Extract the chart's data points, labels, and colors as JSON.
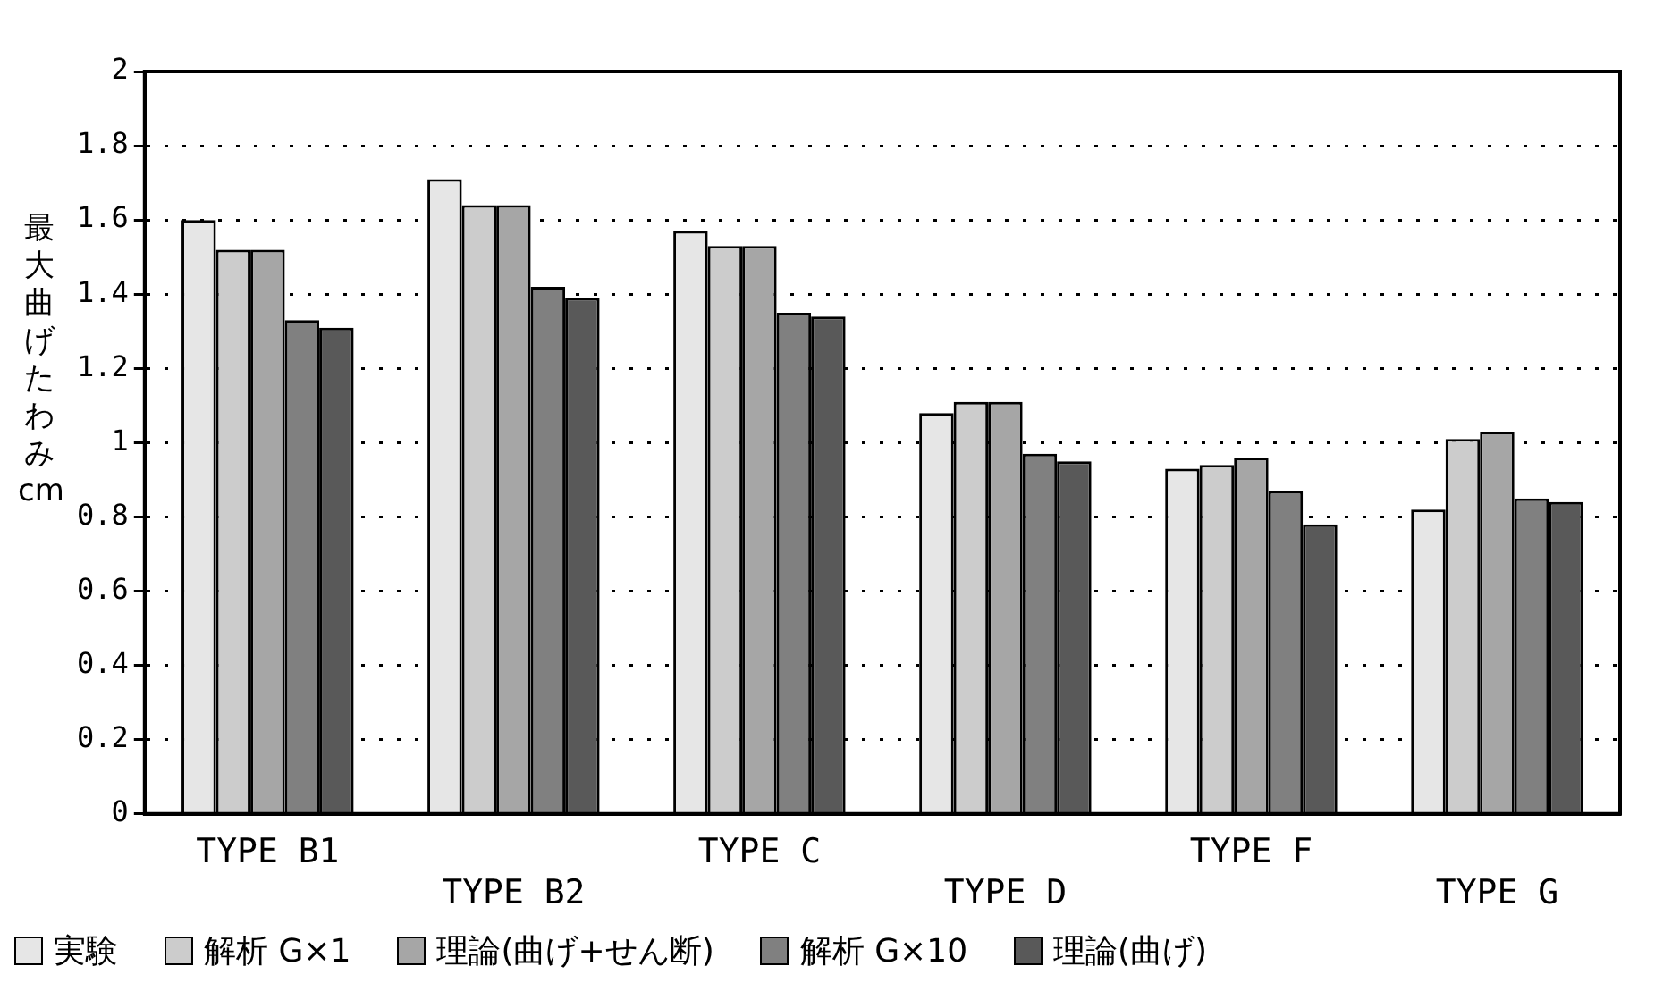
{
  "chart_data": {
    "type": "bar",
    "ylabel": "最大曲げたわみ cm",
    "categories": [
      "TYPE B1",
      "TYPE B2",
      "TYPE C",
      "TYPE D",
      "TYPE F",
      "TYPE G"
    ],
    "series": [
      {
        "name": "実験",
        "color": "#e6e6e6",
        "values": [
          1.6,
          1.71,
          1.57,
          1.08,
          0.93,
          0.82
        ]
      },
      {
        "name": "解析 G×1",
        "color": "#cccccc",
        "values": [
          1.52,
          1.64,
          1.53,
          1.11,
          0.94,
          1.01
        ]
      },
      {
        "name": "理論(曲げ+せん断)",
        "color": "#a6a6a6",
        "values": [
          1.52,
          1.64,
          1.53,
          1.11,
          0.96,
          1.03
        ]
      },
      {
        "name": "解析 G×10",
        "color": "#808080",
        "values": [
          1.33,
          1.42,
          1.35,
          0.97,
          0.87,
          0.85
        ]
      },
      {
        "name": "理論(曲げ)",
        "color": "#595959",
        "values": [
          1.31,
          1.39,
          1.34,
          0.95,
          0.78,
          0.84
        ]
      }
    ],
    "ylim": [
      0,
      2
    ],
    "yticks": [
      0,
      0.2,
      0.4,
      0.6,
      0.8,
      1,
      1.2,
      1.4,
      1.6,
      1.8,
      2
    ],
    "grid": "y",
    "legend": "bottom"
  }
}
